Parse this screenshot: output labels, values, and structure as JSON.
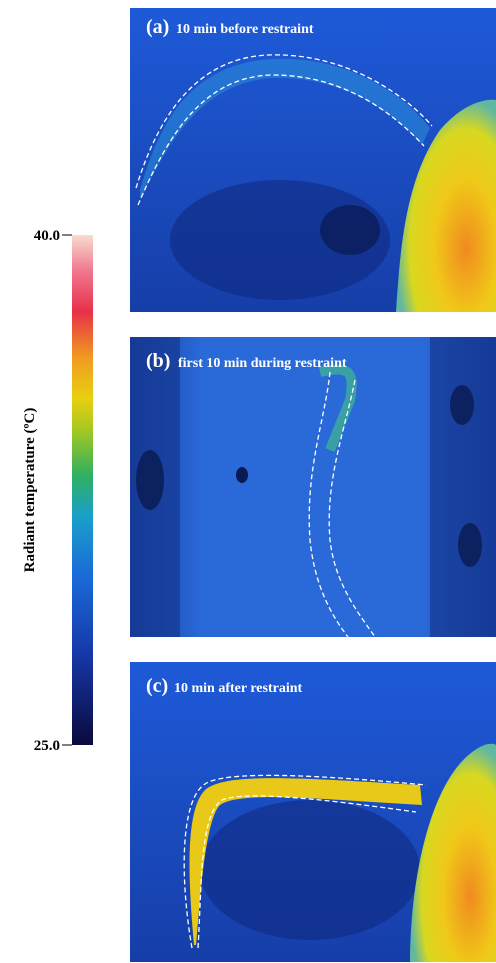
{
  "colorbar": {
    "title": "Radiant temperature (ºC)",
    "range": [
      25,
      40
    ],
    "ticks": [
      {
        "value": 40,
        "label": "40.0"
      },
      {
        "value": 25,
        "label": "25.0"
      }
    ]
  },
  "panels": [
    {
      "label": "(a)",
      "caption": "10 min before restraint"
    },
    {
      "label": "(b)",
      "caption": "first 10 min during restraint"
    },
    {
      "label": "(c)",
      "caption": "10 min after restraint"
    }
  ]
}
